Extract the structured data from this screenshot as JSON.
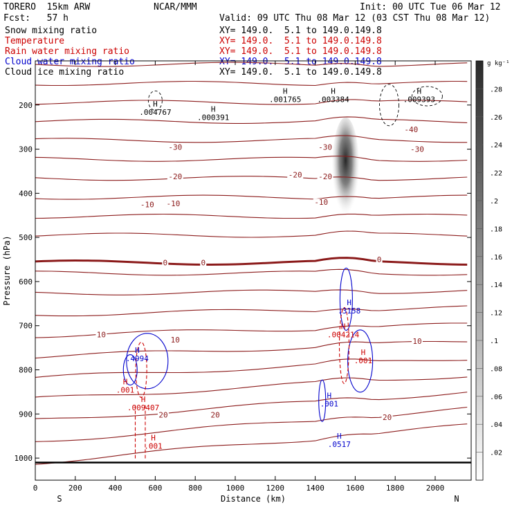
{
  "header": {
    "model": "TORERO  15km ARW",
    "center": "NCAR/MMM",
    "init": "Init: 00 UTC Tue 06 Mar 12",
    "fcst": "Fcst:   57 h",
    "valid": "Valid: 09 UTC Thu 08 Mar 12 (03 CST Thu 08 Mar 12)"
  },
  "legend": [
    {
      "name": "Snow mixing ratio",
      "xy": "",
      "color": "#000000"
    },
    {
      "name": "Temperature",
      "xy": "XY= 149.0.  5.1 to 149.0.149.8",
      "color": "#cc0000"
    },
    {
      "name": "Rain water mixing ratio",
      "xy": "XY= 149.0.  5.1 to 149.0.149.8",
      "color": "#cc0000"
    },
    {
      "name": "Cloud water mixing ratio",
      "xy": "XY= 149.0.  5.1 to 149.0.149.8",
      "color": "#0000cc"
    },
    {
      "name": "Cloud ice mixing ratio",
      "xy": "XY= 149.0.  5.1 to 149.0.149.8",
      "color": "#000000"
    }
  ],
  "legend_xy_first": "XY= 149.0.  5.1 to 149.0.149.8",
  "chart_data": {
    "type": "contour",
    "xlabel": "Distance (km)",
    "ylabel": "Pressure (hPa)",
    "xlim": [
      0,
      2180
    ],
    "ylim": [
      1050,
      100
    ],
    "x_ticks": [
      0,
      200,
      400,
      600,
      800,
      1000,
      1200,
      1400,
      1600,
      1800,
      2000
    ],
    "y_ticks": [
      200,
      300,
      400,
      500,
      600,
      700,
      800,
      900,
      1000
    ],
    "x_end_labels": {
      "left": "S",
      "right": "N"
    },
    "colorbar": {
      "unit": "g kg⁻¹",
      "ticks": [
        ".02",
        ".04",
        ".06",
        ".08",
        ".1",
        ".12",
        ".14",
        ".16",
        ".18",
        ".2",
        ".22",
        ".24",
        ".26",
        ".28"
      ],
      "range": [
        0,
        0.3
      ]
    },
    "temperature_labels": [
      {
        "text": "-40",
        "x": 1880,
        "p": 255
      },
      {
        "text": "-30",
        "x": 700,
        "p": 295
      },
      {
        "text": "-30",
        "x": 1450,
        "p": 295
      },
      {
        "text": "-30",
        "x": 1910,
        "p": 300
      },
      {
        "text": "-20",
        "x": 700,
        "p": 362
      },
      {
        "text": "-20",
        "x": 1300,
        "p": 358
      },
      {
        "text": "-20",
        "x": 1450,
        "p": 362
      },
      {
        "text": "-10",
        "x": 560,
        "p": 425
      },
      {
        "text": "-10",
        "x": 690,
        "p": 423
      },
      {
        "text": "-10",
        "x": 1430,
        "p": 420
      },
      {
        "text": "0",
        "x": 650,
        "p": 557
      },
      {
        "text": "0",
        "x": 840,
        "p": 557
      },
      {
        "text": "0",
        "x": 1720,
        "p": 550
      },
      {
        "text": "10",
        "x": 330,
        "p": 720
      },
      {
        "text": "10",
        "x": 700,
        "p": 732
      },
      {
        "text": "10",
        "x": 1910,
        "p": 735
      },
      {
        "text": "20",
        "x": 640,
        "p": 902
      },
      {
        "text": "20",
        "x": 900,
        "p": 902
      },
      {
        "text": "20",
        "x": 1760,
        "p": 907
      }
    ],
    "maxima_labels": [
      {
        "text": ".004767",
        "x": 600,
        "p": 222,
        "color": "#000000"
      },
      {
        "text": ".000391",
        "x": 890,
        "p": 234,
        "color": "#000000"
      },
      {
        "text": ".001765",
        "x": 1250,
        "p": 193,
        "color": "#000000"
      },
      {
        "text": ".003384",
        "x": 1490,
        "p": 193,
        "color": "#000000"
      },
      {
        "text": ".009393",
        "x": 1920,
        "p": 193,
        "color": "#000000"
      },
      {
        "text": ".3158",
        "x": 1570,
        "p": 672,
        "color": "#0000cc"
      },
      {
        "text": ".004214",
        "x": 1540,
        "p": 726,
        "color": "#cc0000"
      },
      {
        "text": ".001",
        "x": 1640,
        "p": 785,
        "color": "#cc0000"
      },
      {
        "text": ".4994",
        "x": 510,
        "p": 780,
        "color": "#0000cc"
      },
      {
        "text": ".001",
        "x": 450,
        "p": 852,
        "color": "#cc0000"
      },
      {
        "text": ".009407",
        "x": 540,
        "p": 892,
        "color": "#cc0000"
      },
      {
        "text": ".001",
        "x": 1470,
        "p": 883,
        "color": "#0000cc"
      },
      {
        "text": ".0517",
        "x": 1520,
        "p": 975,
        "color": "#0000cc"
      },
      {
        "text": ".001",
        "x": 590,
        "p": 979,
        "color": "#cc0000"
      }
    ],
    "snow_core": {
      "x": 1552,
      "p_top": 250,
      "p_bottom": 450,
      "max_value": 0.3
    }
  }
}
